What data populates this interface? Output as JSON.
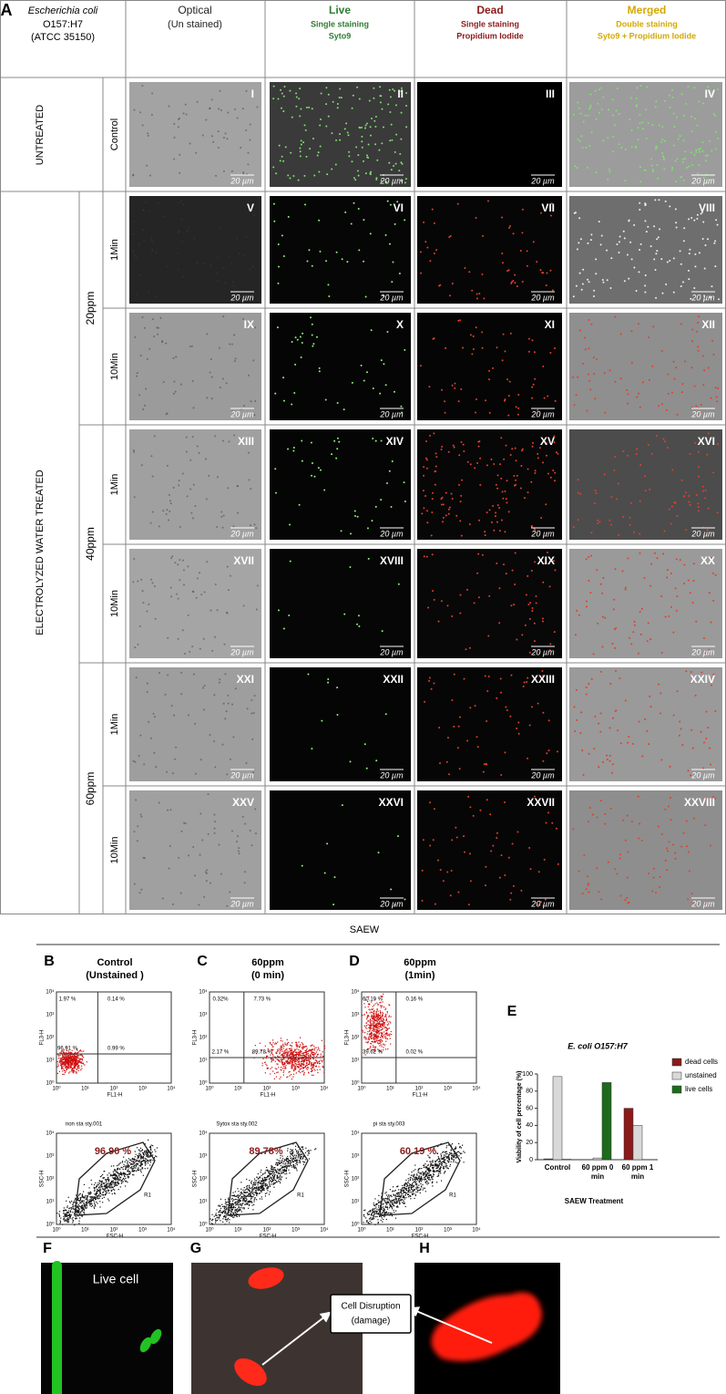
{
  "panel_a": {
    "letter": "A",
    "header": {
      "organism": "Escherichia coli",
      "strain": "O157:H7",
      "atcc": "(ATCC 35150)",
      "columns": [
        {
          "title": "Optical",
          "lines": [
            "(Un stained)"
          ]
        },
        {
          "title": "Live",
          "lines": [
            "Single staining",
            "Syto9"
          ]
        },
        {
          "title": "Dead",
          "lines": [
            "Single staining",
            "Propidium Iodide"
          ]
        },
        {
          "title": "Merged",
          "lines": [
            "Double staining",
            "Syto9 + Propidium Iodide"
          ]
        }
      ]
    },
    "groups": [
      "UNTREATED",
      "ELECTROLYZED WATER TREATED"
    ],
    "concentrations": [
      "20ppm",
      "40ppm",
      "60ppm"
    ],
    "rows": [
      {
        "time": "Control",
        "images": [
          "I",
          "II",
          "III",
          "IV"
        ]
      },
      {
        "time": "1Min",
        "images": [
          "V",
          "VI",
          "VII",
          "VIII"
        ]
      },
      {
        "time": "10Min",
        "images": [
          "IX",
          "X",
          "XI",
          "XII"
        ]
      },
      {
        "time": "1Min",
        "images": [
          "XIII",
          "XIV",
          "XV",
          "XVI"
        ]
      },
      {
        "time": "10Min",
        "images": [
          "XVII",
          "XVIII",
          "XIX",
          "XX"
        ]
      },
      {
        "time": "1Min",
        "images": [
          "XXI",
          "XXII",
          "XXIII",
          "XXIV"
        ]
      },
      {
        "time": "10Min",
        "images": [
          "XXV",
          "XXVI",
          "XXVII",
          "XXVIII"
        ]
      }
    ],
    "scale_bar": "20 µm"
  },
  "saew_label": "SAEW",
  "flow_panels": [
    {
      "letter": "B",
      "title": [
        "Control",
        "(Unstained )"
      ],
      "quadrants": [
        "1.97 %",
        "0.14 %",
        "96.91 %",
        "0.99 %"
      ],
      "gate_title": "non sta sty.001",
      "gate_percent": "96.90 %"
    },
    {
      "letter": "C",
      "title": [
        "60ppm",
        "(0 min)"
      ],
      "quadrants": [
        "0.32%",
        "7.73 %",
        "2.17 %",
        "89.78 %"
      ],
      "gate_title": "Sytox sta sty.002",
      "gate_percent": "89.78%"
    },
    {
      "letter": "D",
      "title": [
        "60ppm",
        "(1min)"
      ],
      "quadrants": [
        "60.19 %",
        "0.16 %",
        "39.62 %",
        "0.02 %"
      ],
      "gate_title": "pi sta sty.003",
      "gate_percent": "60.19 %"
    }
  ],
  "flow_axes": {
    "fl3": "FL3-H",
    "fl1": "FL1-H",
    "ssc": "SSC-H",
    "fsc": "FSC-H",
    "gate": "R1",
    "ticks": [
      "10⁰",
      "10¹",
      "10²",
      "10³",
      "10⁴"
    ]
  },
  "panel_e_letter": "E",
  "chart_data": {
    "type": "bar",
    "title": "E. coli O157:H7",
    "x_label": "SAEW Treatment",
    "y_label": "Viability of cell percentage (%)",
    "categories": [
      "Control",
      "60 ppm 0 min",
      "60 ppm 1 min"
    ],
    "series": [
      {
        "name": "dead cells",
        "color": "#8b1a1a",
        "values": [
          1,
          0,
          60
        ]
      },
      {
        "name": "unstained",
        "color": "#d9d9d9",
        "values": [
          97,
          2,
          40
        ]
      },
      {
        "name": "live cells",
        "color": "#1e6b1e",
        "values": [
          0.5,
          90,
          0
        ]
      }
    ],
    "ylim": [
      0,
      100
    ],
    "yticks": [
      0,
      20,
      40,
      60,
      80,
      100
    ],
    "legend": "right"
  },
  "bottom_panels": {
    "f_letter": "F",
    "g_letter": "G",
    "h_letter": "H",
    "live_cell": "Live cell",
    "callout": [
      "Cell Disruption",
      "(damage)"
    ]
  }
}
